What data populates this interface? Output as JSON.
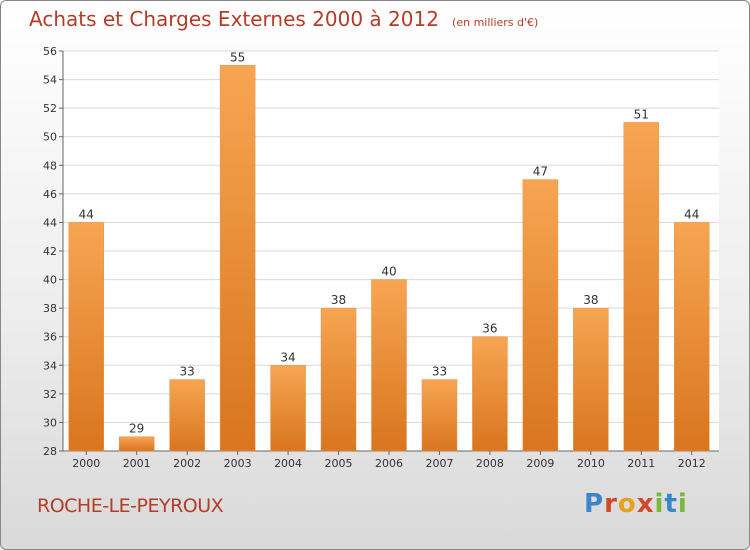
{
  "header": {
    "title": "Achats et Charges Externes 2000 à 2012",
    "subtitle": "(en milliers d'€)"
  },
  "footer": {
    "commune": "ROCHE-LE-PEYROUX",
    "brand": [
      "P",
      "r",
      "o",
      "x",
      "i",
      "t",
      "i"
    ]
  },
  "colors": {
    "bar_top": "#f7a552",
    "bar_bottom": "#d9751e",
    "text_accent": "#b43c28"
  },
  "chart_data": {
    "type": "bar",
    "title": "Achats et Charges Externes 2000 à 2012",
    "subtitle": "(en milliers d'€)",
    "categories": [
      "2000",
      "2001",
      "2002",
      "2003",
      "2004",
      "2005",
      "2006",
      "2007",
      "2008",
      "2009",
      "2010",
      "2011",
      "2012"
    ],
    "values": [
      44,
      29,
      33,
      55,
      34,
      38,
      40,
      33,
      36,
      47,
      38,
      51,
      44
    ],
    "data_labels": [
      "44",
      "29",
      "33",
      "55",
      "34",
      "38",
      "40",
      "33",
      "36",
      "47",
      "38",
      "51",
      "44"
    ],
    "ylim": [
      28,
      56
    ],
    "yticks": [
      "28",
      "30",
      "32",
      "34",
      "36",
      "38",
      "40",
      "42",
      "44",
      "46",
      "48",
      "50",
      "52",
      "54",
      "56"
    ],
    "grid": true,
    "legend": "none"
  }
}
